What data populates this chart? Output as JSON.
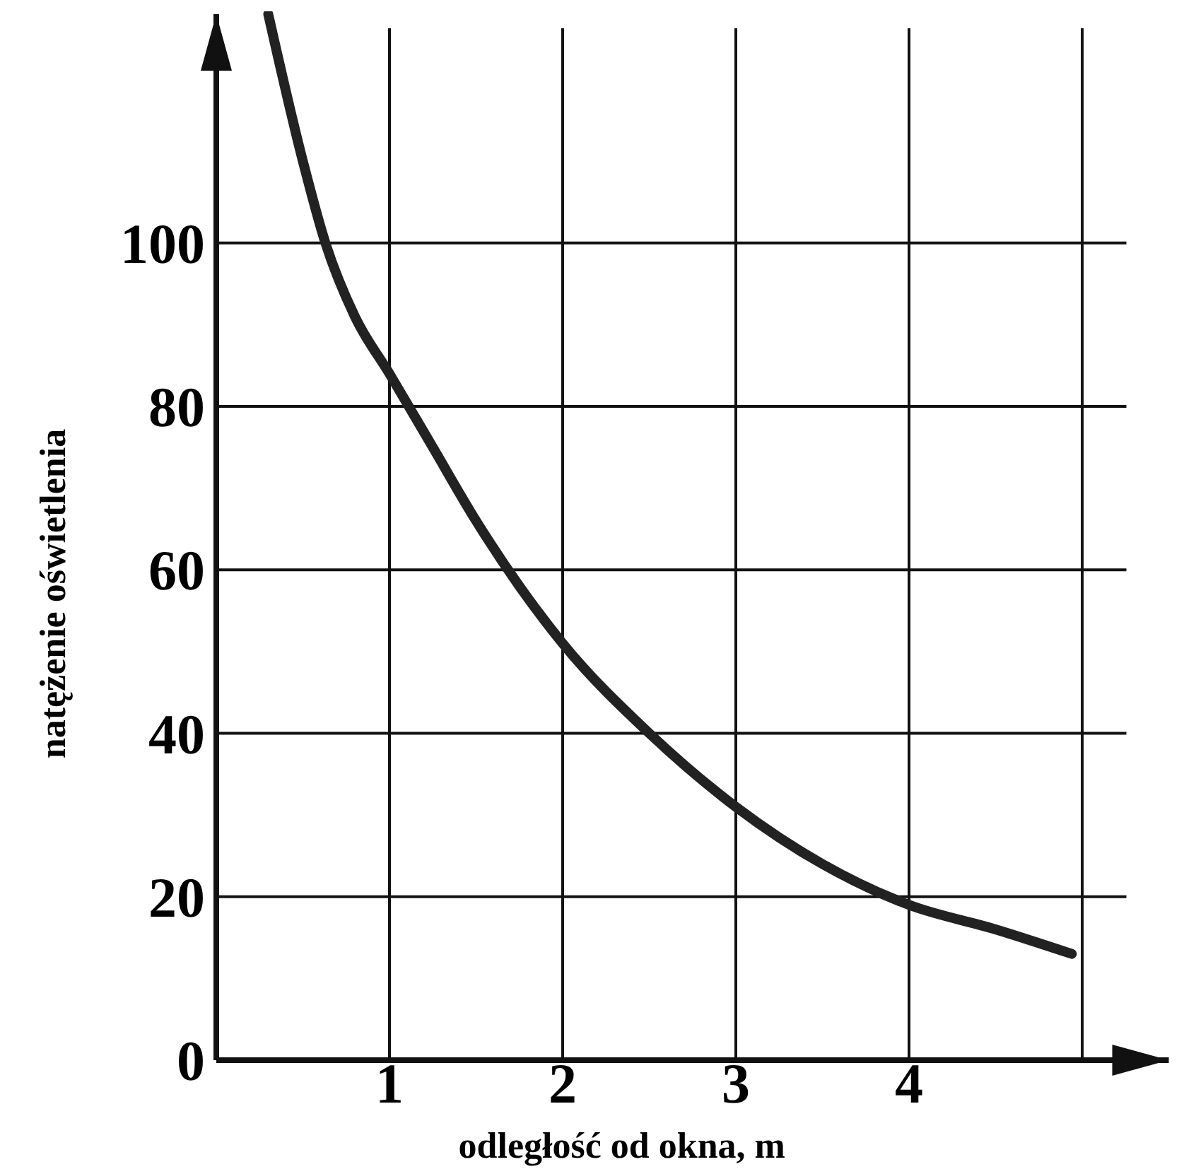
{
  "chart_data": {
    "type": "line",
    "xlabel": "odległość od okna, m",
    "ylabel": "natężenie oświetlenia",
    "x": [
      0.3,
      0.5,
      0.63,
      0.8,
      1,
      1.25,
      1.5,
      1.75,
      2,
      2.5,
      3,
      3.5,
      4,
      4.5,
      4.94
    ],
    "series": [
      {
        "color": "#222222",
        "values": [
          128,
          110,
          100,
          91,
          84,
          75,
          66,
          58,
          51,
          40,
          31,
          24,
          19,
          16,
          13
        ]
      }
    ],
    "xlim": [
      0,
      5.5
    ],
    "ylim": [
      0,
      128
    ],
    "xticks": [
      1,
      2,
      3,
      4,
      {
        "value": 5,
        "label": null
      }
    ],
    "yticks": [
      0,
      20,
      40,
      60,
      80,
      100
    ],
    "grid": true,
    "marker": "none",
    "line_style": "solid"
  }
}
